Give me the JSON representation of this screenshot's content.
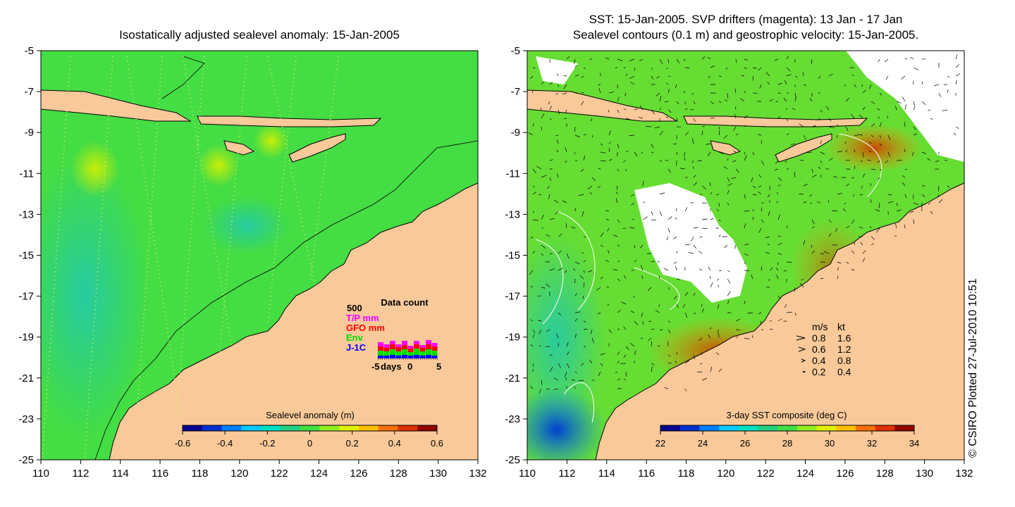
{
  "left_panel": {
    "title": "Isostatically adjusted sealevel anomaly: 15-Jan-2005",
    "colorbar": {
      "label": "Sealevel anomaly (m)",
      "ticks": [
        "-0.6",
        "-0.4",
        "-0.2",
        "0",
        "0.2",
        "0.4",
        "0.6"
      ],
      "colors": [
        "#00008f",
        "#0030d0",
        "#0080ff",
        "#00c8ff",
        "#00e0c0",
        "#20d080",
        "#40e040",
        "#90ee20",
        "#e0f000",
        "#ffc000",
        "#ff7000",
        "#e03000",
        "#900000"
      ]
    },
    "data_count": {
      "title": "Data count",
      "max_label": "500",
      "series": [
        {
          "name": "T/P mm",
          "color": "#ff00ff"
        },
        {
          "name": "GFO mm",
          "color": "#ff0000"
        },
        {
          "name": "Env",
          "color": "#00dd00"
        },
        {
          "name": "J-1C",
          "color": "#0000ff"
        }
      ],
      "xlabel": "days",
      "xticks": [
        "-5",
        "0",
        "5"
      ]
    }
  },
  "right_panel": {
    "title_line1": "SST: 15-Jan-2005. SVP drifters (magenta): 13 Jan - 17 Jan",
    "title_line2": "Sealevel contours (0.1 m) and geostrophic velocity: 15-Jan-2005.",
    "colorbar": {
      "label": "3-day SST composite (deg C)",
      "ticks": [
        "22",
        "24",
        "26",
        "28",
        "30",
        "32",
        "34"
      ],
      "colors": [
        "#00008f",
        "#0030d0",
        "#0080ff",
        "#00c8ff",
        "#00e0c0",
        "#20d080",
        "#40e040",
        "#90ee20",
        "#e0f000",
        "#ffc000",
        "#ff7000",
        "#e03000",
        "#900000"
      ]
    },
    "velocity_legend": {
      "header": [
        "m/s",
        "kt"
      ],
      "rows": [
        {
          "ms": "0.8",
          "kt": "1.6"
        },
        {
          "ms": "0.6",
          "kt": "1.2"
        },
        {
          "ms": "0.4",
          "kt": "0.8"
        },
        {
          "ms": "0.2",
          "kt": "0.4"
        }
      ]
    }
  },
  "axes": {
    "y_ticks": [
      "-5",
      "-7",
      "-9",
      "-11",
      "-13",
      "-15",
      "-17",
      "-19",
      "-21",
      "-23",
      "-25"
    ],
    "x_ticks": [
      "110",
      "112",
      "114",
      "116",
      "118",
      "120",
      "122",
      "124",
      "126",
      "128",
      "130",
      "132"
    ]
  },
  "credit": "© CSIRO Plotted 27-Jul-2010 10:51",
  "colors": {
    "land": "#f9c99a",
    "sea_left": "#44dd44",
    "sea_right": "#66dd33",
    "missing": "#ffffff"
  }
}
